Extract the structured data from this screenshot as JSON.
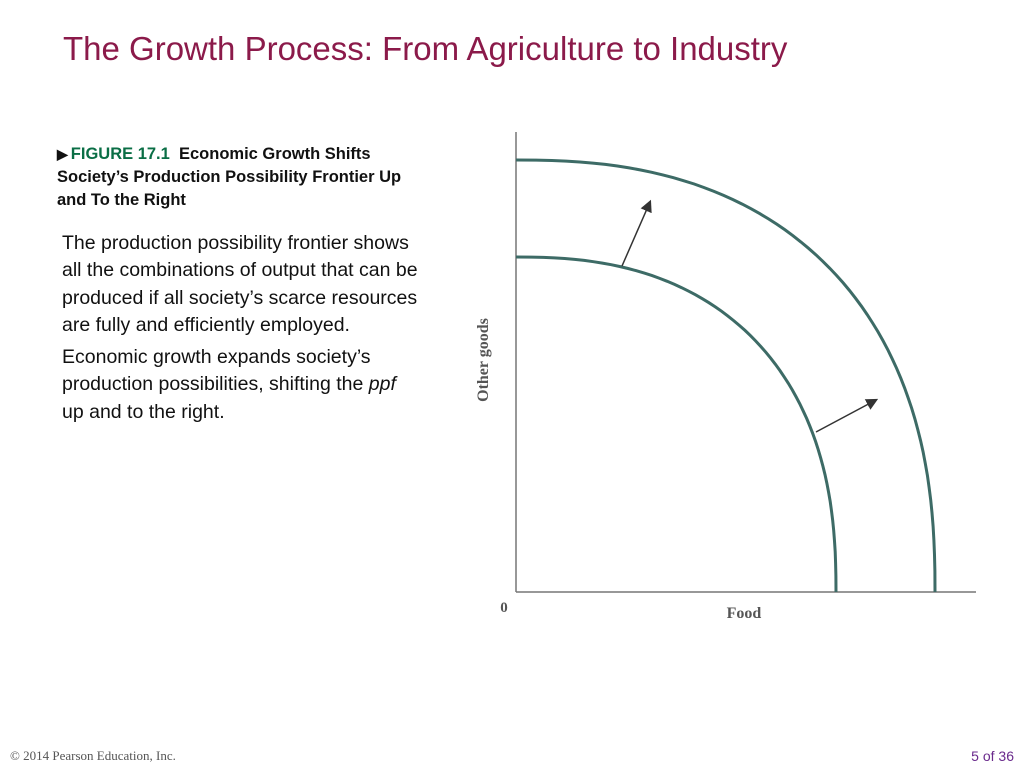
{
  "slide": {
    "title": "The Growth Process: From Agriculture to Industry",
    "figure_marker": "▶",
    "figure_label": "FIGURE 17.1",
    "figure_caption": "Economic Growth Shifts Society’s Production Possibility Frontier Up and To the Right",
    "paragraph_1": "The production possibility frontier shows all the combinations of output that can be produced if all society’s scarce resources are fully and efficiently employed.",
    "paragraph_2_before": "Economic growth expands society’s production possibilities, shifting the ",
    "paragraph_2_emph": "ppf",
    "paragraph_2_after": " up and to the right.",
    "footer_copyright": "© 2014 Pearson Education, Inc.",
    "page_indicator": "5 of 36"
  },
  "chart_data": {
    "type": "line",
    "xlabel": "Food",
    "ylabel": "Other goods",
    "origin_label": "0",
    "series": [
      {
        "x_intercept": 320,
        "y_intercept": 335
      },
      {
        "x_intercept": 419,
        "y_intercept": 432
      }
    ],
    "colors": {
      "curve": "#3d6b66",
      "axis": "#777777",
      "arrow": "#333333"
    }
  }
}
